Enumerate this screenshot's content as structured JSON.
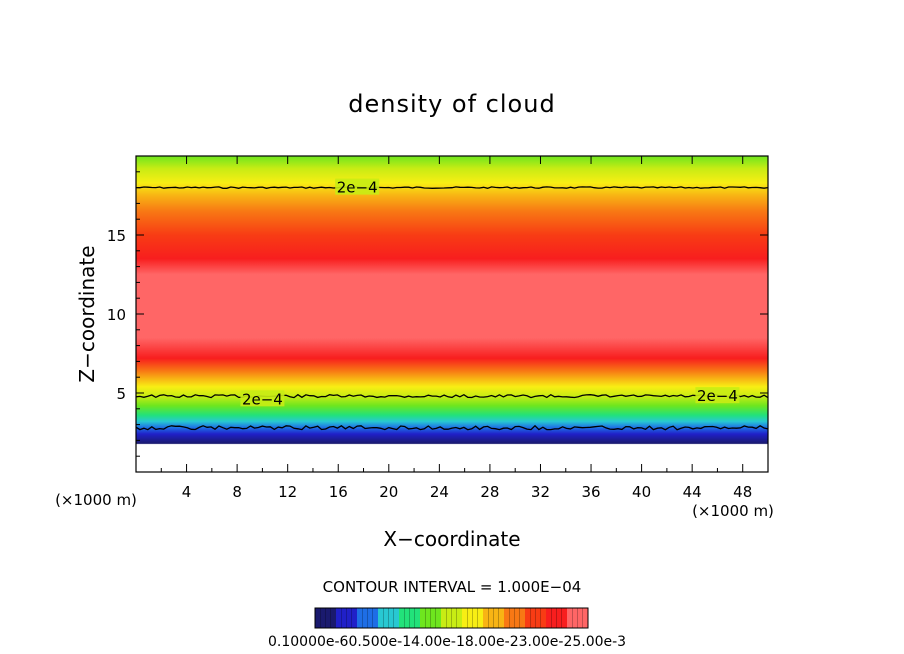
{
  "colors": {
    "bands": [
      "#1a1a6e",
      "#2020c8",
      "#1e6ee6",
      "#28c8d2",
      "#22e27a",
      "#6ee61e",
      "#c8ec14",
      "#f8ee14",
      "#f8b414",
      "#f87814",
      "#f83c14",
      "#f81e1e",
      "#ff6666"
    ],
    "contour": "#000000"
  },
  "chart_data": {
    "type": "heatmap",
    "title": "density of cloud",
    "xlabel": "X−coordinate",
    "ylabel": "Z−coordinate",
    "x_unit": "(×1000 m)",
    "z_unit": "(×1000 m)",
    "xlim": [
      0,
      50
    ],
    "ylim": [
      0,
      20
    ],
    "x_ticks": [
      4,
      8,
      12,
      16,
      20,
      24,
      28,
      32,
      36,
      40,
      44,
      48
    ],
    "y_ticks": [
      5,
      10,
      15
    ],
    "contour_labels": [
      {
        "text": "2e−4",
        "x": 17.5,
        "z": 18.0
      },
      {
        "text": "2e−4",
        "x": 10,
        "z": 4.6
      },
      {
        "text": "2e−4",
        "x": 46,
        "z": 4.8
      }
    ],
    "vertical_profile_color_by_z": [
      {
        "z": 1.8,
        "band": 0
      },
      {
        "z": 2.4,
        "band": 1
      },
      {
        "z": 2.8,
        "band": 2
      },
      {
        "z": 3.2,
        "band": 3
      },
      {
        "z": 3.6,
        "band": 4
      },
      {
        "z": 4.2,
        "band": 5
      },
      {
        "z": 4.8,
        "band": 6
      },
      {
        "z": 5.4,
        "band": 7
      },
      {
        "z": 5.9,
        "band": 8
      },
      {
        "z": 6.4,
        "band": 9
      },
      {
        "z": 7.2,
        "band": 11
      },
      {
        "z": 8.5,
        "band": 12
      },
      {
        "z": 12.5,
        "band": 12
      },
      {
        "z": 13.5,
        "band": 11
      },
      {
        "z": 15.0,
        "band": 10
      },
      {
        "z": 16.5,
        "band": 9
      },
      {
        "z": 17.5,
        "band": 8
      },
      {
        "z": 18.3,
        "band": 7
      },
      {
        "z": 19.2,
        "band": 6
      },
      {
        "z": 20.0,
        "band": 5
      }
    ],
    "contour_interval_text": "CONTOUR INTERVAL = 1.000E−04",
    "colorbar": {
      "min_label": "0.1000",
      "tick_labels_text": "0.10000e-60.500e-14.00e-18.00e-23.00e-25.00e-3",
      "levels": 13
    }
  }
}
